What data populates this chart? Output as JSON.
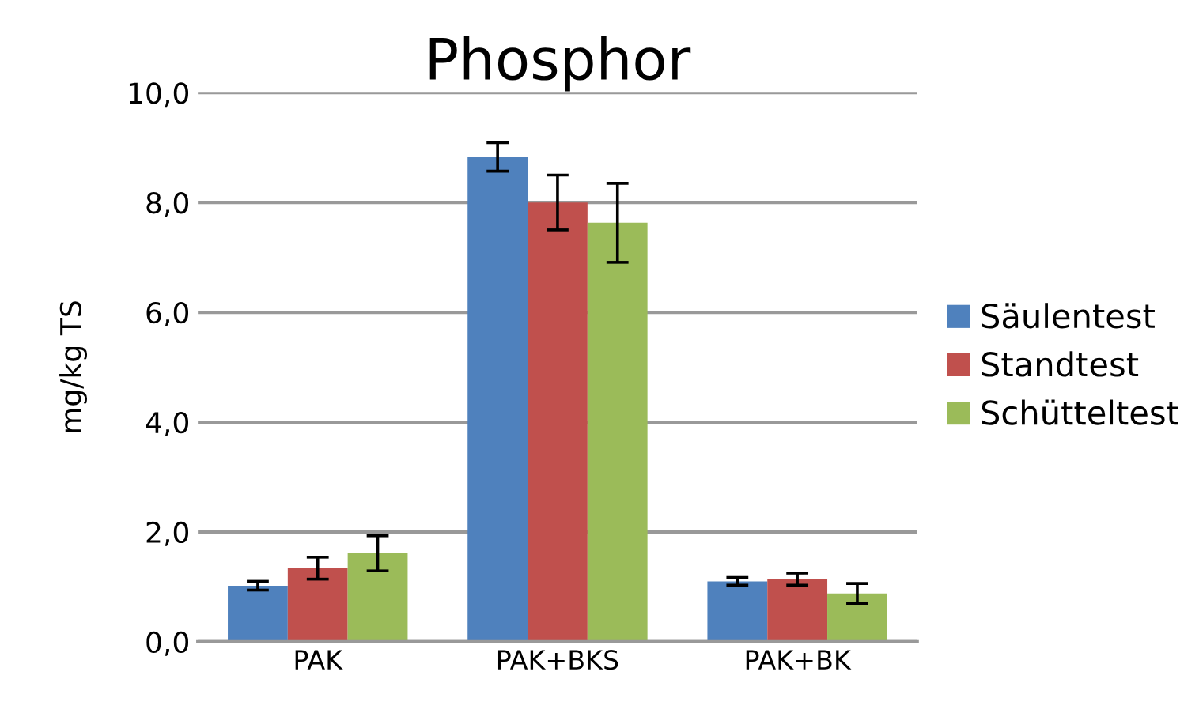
{
  "chart_data": {
    "type": "bar",
    "title": "Phosphor",
    "ylabel": "mg/kg TS",
    "categories": [
      "PAK",
      "PAK+BKS",
      "PAK+BK"
    ],
    "series": [
      {
        "name": "Säulentest",
        "color": "#4f81bd",
        "values": [
          1.02,
          8.83,
          1.1
        ],
        "errors": [
          0.08,
          0.26,
          0.07
        ]
      },
      {
        "name": "Standtest",
        "color": "#c0504d",
        "values": [
          1.34,
          8.0,
          1.14
        ],
        "errors": [
          0.2,
          0.5,
          0.11
        ]
      },
      {
        "name": "Schütteltest",
        "color": "#9bbb59",
        "values": [
          1.61,
          7.63,
          0.88
        ],
        "errors": [
          0.32,
          0.72,
          0.18
        ]
      }
    ],
    "ylim": [
      0,
      10
    ],
    "yticks": [
      {
        "value": 0,
        "label": "0,0"
      },
      {
        "value": 2,
        "label": "2,0"
      },
      {
        "value": 4,
        "label": "4,0"
      },
      {
        "value": 6,
        "label": "6,0"
      },
      {
        "value": 8,
        "label": "8,0"
      },
      {
        "value": 10,
        "label": "10,0"
      }
    ],
    "grid": "y",
    "legend": "right"
  }
}
